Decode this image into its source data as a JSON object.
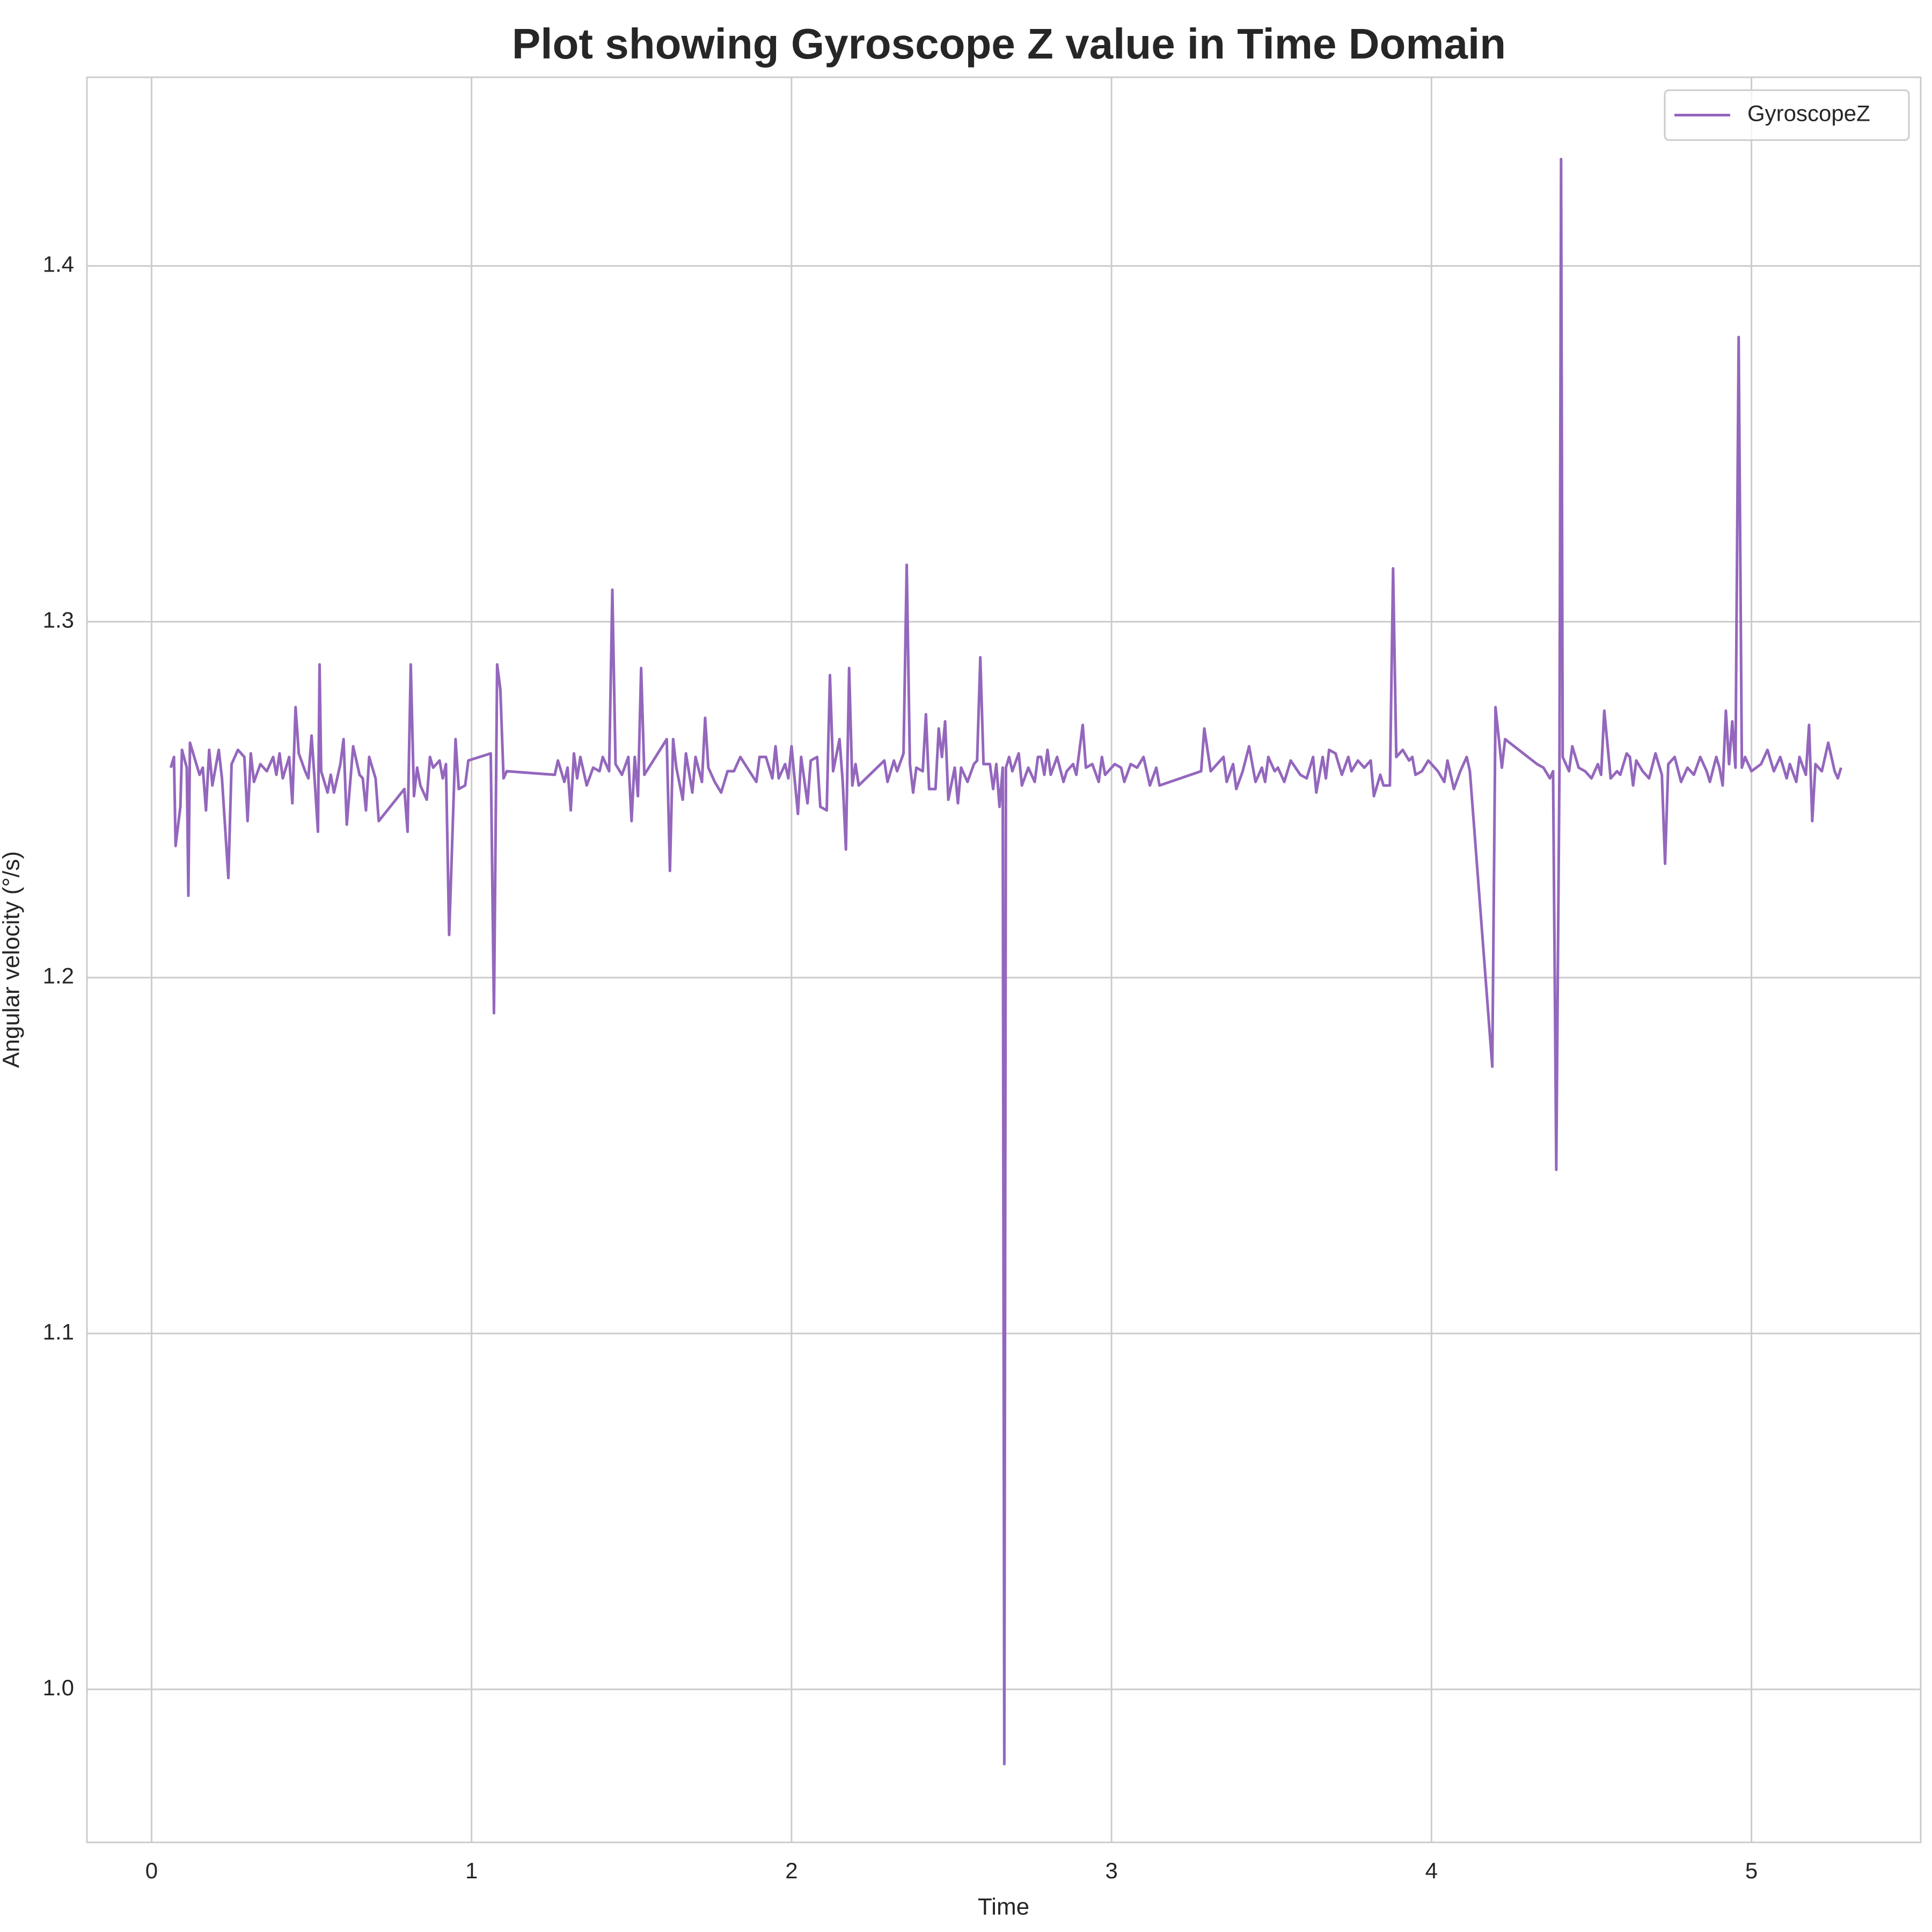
{
  "chart_data": {
    "type": "line",
    "title": "Plot showing Gyroscope Z value in Time Domain",
    "x_label": "Time",
    "y_label": "Angular velocity (°/s)",
    "xlim": [
      -0.202,
      5.529
    ],
    "ylim": [
      0.957,
      1.453
    ],
    "xticks": [
      0,
      1,
      2,
      3,
      4,
      5
    ],
    "yticks": [
      {
        "value": 1,
        "label": "1.0"
      },
      1.1,
      1.2,
      1.3,
      1.4
    ],
    "grid": true,
    "legend": "upper right",
    "x": [
      0.06,
      0.07,
      0.075,
      0.09,
      0.095,
      0.11,
      0.115,
      0.12,
      0.14,
      0.15,
      0.16,
      0.17,
      0.18,
      0.19,
      0.21,
      0.22,
      0.24,
      0.25,
      0.27,
      0.29,
      0.3,
      0.31,
      0.32,
      0.34,
      0.36,
      0.38,
      0.39,
      0.4,
      0.41,
      0.43,
      0.44,
      0.45,
      0.46,
      0.48,
      0.49,
      0.5,
      0.51,
      0.52,
      0.525,
      0.53,
      0.55,
      0.56,
      0.57,
      0.59,
      0.6,
      0.61,
      0.63,
      0.65,
      0.66,
      0.67,
      0.68,
      0.7,
      0.71,
      0.79,
      0.8,
      0.81,
      0.82,
      0.83,
      0.84,
      0.86,
      0.87,
      0.88,
      0.9,
      0.91,
      0.92,
      0.93,
      0.95,
      0.96,
      0.98,
      0.99,
      1.06,
      1.07,
      1.08,
      1.09,
      1.1,
      1.11,
      1.26,
      1.27,
      1.29,
      1.3,
      1.31,
      1.32,
      1.33,
      1.34,
      1.36,
      1.38,
      1.4,
      1.41,
      1.43,
      1.44,
      1.45,
      1.47,
      1.49,
      1.5,
      1.51,
      1.52,
      1.53,
      1.54,
      1.61,
      1.62,
      1.63,
      1.64,
      1.66,
      1.67,
      1.69,
      1.7,
      1.72,
      1.73,
      1.74,
      1.76,
      1.78,
      1.8,
      1.82,
      1.84,
      1.89,
      1.9,
      1.92,
      1.94,
      1.95,
      1.96,
      1.98,
      1.99,
      2.0,
      2.02,
      2.03,
      2.05,
      2.06,
      2.08,
      2.09,
      2.11,
      2.12,
      2.13,
      2.15,
      2.16,
      2.17,
      2.18,
      2.19,
      2.2,
      2.21,
      2.29,
      2.3,
      2.32,
      2.33,
      2.35,
      2.36,
      2.37,
      2.38,
      2.39,
      2.41,
      2.42,
      2.43,
      2.45,
      2.46,
      2.47,
      2.48,
      2.49,
      2.51,
      2.52,
      2.53,
      2.55,
      2.57,
      2.58,
      2.59,
      2.6,
      2.62,
      2.63,
      2.64,
      2.65,
      2.66,
      2.665,
      2.67,
      2.68,
      2.69,
      2.71,
      2.72,
      2.74,
      2.76,
      2.77,
      2.78,
      2.79,
      2.8,
      2.81,
      2.83,
      2.85,
      2.86,
      2.88,
      2.89,
      2.91,
      2.92,
      2.94,
      2.96,
      2.97,
      2.98,
      3.01,
      3.03,
      3.04,
      3.06,
      3.08,
      3.1,
      3.12,
      3.14,
      3.15,
      3.28,
      3.29,
      3.31,
      3.33,
      3.35,
      3.36,
      3.38,
      3.39,
      3.41,
      3.43,
      3.45,
      3.47,
      3.48,
      3.49,
      3.51,
      3.52,
      3.54,
      3.56,
      3.59,
      3.61,
      3.63,
      3.64,
      3.66,
      3.67,
      3.68,
      3.7,
      3.72,
      3.74,
      3.75,
      3.77,
      3.79,
      3.81,
      3.82,
      3.84,
      3.85,
      3.87,
      3.88,
      3.89,
      3.91,
      3.93,
      3.94,
      3.95,
      3.97,
      3.99,
      4.02,
      4.04,
      4.05,
      4.07,
      4.09,
      4.11,
      4.12,
      4.19,
      4.2,
      4.22,
      4.23,
      4.33,
      4.35,
      4.37,
      4.38,
      4.39,
      4.4,
      4.405,
      4.41,
      4.43,
      4.44,
      4.46,
      4.48,
      4.5,
      4.52,
      4.53,
      4.54,
      4.56,
      4.58,
      4.59,
      4.61,
      4.62,
      4.63,
      4.64,
      4.66,
      4.68,
      4.7,
      4.72,
      4.73,
      4.74,
      4.76,
      4.78,
      4.8,
      4.82,
      4.84,
      4.86,
      4.87,
      4.89,
      4.9,
      4.91,
      4.92,
      4.93,
      4.94,
      4.95,
      4.96,
      4.97,
      4.98,
      5.0,
      5.03,
      5.05,
      5.07,
      5.09,
      5.11,
      5.12,
      5.14,
      5.15,
      5.17,
      5.18,
      5.19,
      5.2,
      5.22,
      5.24,
      5.26,
      5.27,
      5.28
    ],
    "series": [
      {
        "name": "GyroscopeZ",
        "color": "#9467bd",
        "values": [
          1.259,
          1.262,
          1.237,
          1.248,
          1.264,
          1.259,
          1.223,
          1.266,
          1.26,
          1.257,
          1.259,
          1.247,
          1.264,
          1.254,
          1.264,
          1.256,
          1.228,
          1.26,
          1.264,
          1.262,
          1.244,
          1.263,
          1.255,
          1.26,
          1.258,
          1.262,
          1.257,
          1.263,
          1.256,
          1.262,
          1.249,
          1.276,
          1.263,
          1.258,
          1.256,
          1.268,
          1.255,
          1.241,
          1.288,
          1.258,
          1.252,
          1.257,
          1.252,
          1.26,
          1.267,
          1.243,
          1.265,
          1.257,
          1.256,
          1.247,
          1.262,
          1.256,
          1.244,
          1.253,
          1.241,
          1.288,
          1.251,
          1.259,
          1.254,
          1.25,
          1.262,
          1.259,
          1.261,
          1.256,
          1.26,
          1.212,
          1.267,
          1.253,
          1.254,
          1.261,
          1.263,
          1.19,
          1.288,
          1.281,
          1.256,
          1.258,
          1.257,
          1.261,
          1.255,
          1.259,
          1.247,
          1.263,
          1.256,
          1.262,
          1.254,
          1.259,
          1.258,
          1.262,
          1.258,
          1.309,
          1.26,
          1.257,
          1.262,
          1.244,
          1.262,
          1.251,
          1.287,
          1.257,
          1.267,
          1.23,
          1.267,
          1.259,
          1.25,
          1.263,
          1.252,
          1.262,
          1.255,
          1.273,
          1.259,
          1.255,
          1.252,
          1.258,
          1.258,
          1.262,
          1.255,
          1.262,
          1.262,
          1.256,
          1.265,
          1.256,
          1.26,
          1.256,
          1.265,
          1.246,
          1.262,
          1.249,
          1.261,
          1.262,
          1.248,
          1.247,
          1.285,
          1.258,
          1.267,
          1.255,
          1.236,
          1.287,
          1.254,
          1.26,
          1.254,
          1.261,
          1.255,
          1.261,
          1.258,
          1.263,
          1.316,
          1.26,
          1.252,
          1.259,
          1.258,
          1.274,
          1.253,
          1.253,
          1.27,
          1.262,
          1.272,
          1.25,
          1.259,
          1.249,
          1.259,
          1.255,
          1.26,
          1.261,
          1.29,
          1.26,
          1.26,
          1.253,
          1.26,
          1.248,
          1.259,
          0.979,
          1.259,
          1.262,
          1.258,
          1.263,
          1.254,
          1.259,
          1.255,
          1.262,
          1.262,
          1.257,
          1.264,
          1.257,
          1.262,
          1.255,
          1.258,
          1.26,
          1.257,
          1.271,
          1.259,
          1.26,
          1.255,
          1.262,
          1.257,
          1.26,
          1.259,
          1.255,
          1.26,
          1.259,
          1.262,
          1.254,
          1.259,
          1.254,
          1.258,
          1.27,
          1.258,
          1.26,
          1.262,
          1.255,
          1.26,
          1.253,
          1.258,
          1.265,
          1.255,
          1.259,
          1.255,
          1.262,
          1.258,
          1.259,
          1.255,
          1.261,
          1.257,
          1.256,
          1.262,
          1.252,
          1.262,
          1.256,
          1.264,
          1.263,
          1.257,
          1.262,
          1.258,
          1.261,
          1.259,
          1.261,
          1.251,
          1.257,
          1.254,
          1.254,
          1.315,
          1.262,
          1.264,
          1.261,
          1.262,
          1.257,
          1.258,
          1.261,
          1.258,
          1.255,
          1.261,
          1.253,
          1.258,
          1.262,
          1.258,
          1.175,
          1.276,
          1.259,
          1.267,
          1.26,
          1.259,
          1.256,
          1.258,
          1.146,
          1.26,
          1.43,
          1.262,
          1.258,
          1.265,
          1.259,
          1.258,
          1.256,
          1.26,
          1.257,
          1.275,
          1.256,
          1.258,
          1.257,
          1.263,
          1.262,
          1.254,
          1.261,
          1.258,
          1.256,
          1.263,
          1.257,
          1.232,
          1.26,
          1.262,
          1.255,
          1.259,
          1.257,
          1.262,
          1.258,
          1.255,
          1.262,
          1.259,
          1.254,
          1.275,
          1.26,
          1.272,
          1.259,
          1.38,
          1.259,
          1.262,
          1.258,
          1.26,
          1.264,
          1.258,
          1.262,
          1.256,
          1.26,
          1.255,
          1.262,
          1.257,
          1.271,
          1.244,
          1.26,
          1.258,
          1.266,
          1.258,
          1.256,
          1.259
        ]
      }
    ]
  }
}
